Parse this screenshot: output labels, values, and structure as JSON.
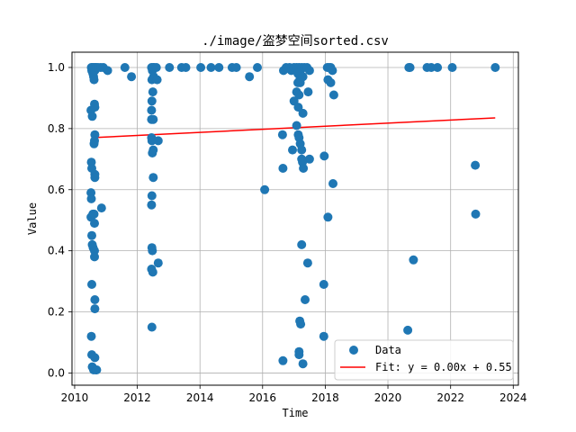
{
  "chart_data": {
    "type": "scatter",
    "title": "./image/盗梦空间sorted.csv",
    "xlabel": "Time",
    "ylabel": "Value",
    "xlim": [
      "2009-12-01",
      "2024-03-01"
    ],
    "ylim": [
      -0.04,
      1.05
    ],
    "x_ticks": [
      "2010",
      "2012",
      "2014",
      "2016",
      "2018",
      "2020",
      "2022",
      "2024"
    ],
    "y_ticks": [
      "0.0",
      "0.2",
      "0.4",
      "0.6",
      "0.8",
      "1.0"
    ],
    "grid": true,
    "legend_position": "lower-right",
    "colors": {
      "points": "#1f77b4",
      "fit_line": "#ff0000",
      "grid": "#b0b0b0"
    },
    "series": [
      {
        "name": "Data",
        "type": "scatter",
        "points": [
          [
            "2010-07-15",
            1.0
          ],
          [
            "2010-07-20",
            0.99
          ],
          [
            "2010-07-25",
            1.0
          ],
          [
            "2010-08-01",
            0.98
          ],
          [
            "2010-08-05",
            1.0
          ],
          [
            "2010-08-10",
            0.97
          ],
          [
            "2010-08-15",
            0.96
          ],
          [
            "2010-08-20",
            1.0
          ],
          [
            "2010-08-25",
            0.99
          ],
          [
            "2010-09-01",
            1.0
          ],
          [
            "2010-09-10",
            1.0
          ],
          [
            "2010-10-01",
            1.0
          ],
          [
            "2010-11-01",
            1.0
          ],
          [
            "2010-12-01",
            1.0
          ],
          [
            "2011-01-20",
            0.99
          ],
          [
            "2011-08-10",
            1.0
          ],
          [
            "2011-10-25",
            0.97
          ],
          [
            "2010-07-10",
            0.86
          ],
          [
            "2010-07-25",
            0.84
          ],
          [
            "2010-08-20",
            0.88
          ],
          [
            "2010-08-25",
            0.87
          ],
          [
            "2010-08-25",
            0.78
          ],
          [
            "2010-08-20",
            0.76
          ],
          [
            "2010-08-15",
            0.75
          ],
          [
            "2010-07-15",
            0.69
          ],
          [
            "2010-07-20",
            0.67
          ],
          [
            "2010-08-25",
            0.65
          ],
          [
            "2010-08-25",
            0.64
          ],
          [
            "2010-07-10",
            0.59
          ],
          [
            "2010-07-15",
            0.57
          ],
          [
            "2010-07-10",
            0.51
          ],
          [
            "2010-08-01",
            0.52
          ],
          [
            "2010-08-15",
            0.52
          ],
          [
            "2010-08-20",
            0.49
          ],
          [
            "2010-11-10",
            0.54
          ],
          [
            "2010-07-20",
            0.45
          ],
          [
            "2010-07-25",
            0.42
          ],
          [
            "2010-08-05",
            0.41
          ],
          [
            "2010-08-20",
            0.4
          ],
          [
            "2010-08-20",
            0.38
          ],
          [
            "2010-07-20",
            0.29
          ],
          [
            "2010-08-25",
            0.24
          ],
          [
            "2010-08-25",
            0.21
          ],
          [
            "2010-07-15",
            0.12
          ],
          [
            "2010-07-20",
            0.06
          ],
          [
            "2010-08-25",
            0.05
          ],
          [
            "2010-07-25",
            0.02
          ],
          [
            "2010-08-10",
            0.01
          ],
          [
            "2010-09-05",
            0.01
          ],
          [
            "2010-09-15",
            0.01
          ],
          [
            "2012-06-15",
            1.0
          ],
          [
            "2012-06-25",
            0.99
          ],
          [
            "2012-07-05",
            1.0
          ],
          [
            "2012-07-15",
            1.0
          ],
          [
            "2012-08-10",
            1.0
          ],
          [
            "2012-06-20",
            0.96
          ],
          [
            "2012-07-10",
            0.97
          ],
          [
            "2012-08-20",
            0.96
          ],
          [
            "2012-06-30",
            0.92
          ],
          [
            "2012-06-20",
            0.89
          ],
          [
            "2012-06-15",
            0.86
          ],
          [
            "2012-06-15",
            0.83
          ],
          [
            "2012-07-05",
            0.83
          ],
          [
            "2012-06-15",
            0.77
          ],
          [
            "2012-06-20",
            0.76
          ],
          [
            "2012-09-01",
            0.76
          ],
          [
            "2012-06-25",
            0.72
          ],
          [
            "2012-07-05",
            0.73
          ],
          [
            "2012-07-05",
            0.64
          ],
          [
            "2012-06-20",
            0.58
          ],
          [
            "2012-06-15",
            0.55
          ],
          [
            "2012-06-20",
            0.41
          ],
          [
            "2012-06-25",
            0.4
          ],
          [
            "2012-06-15",
            0.34
          ],
          [
            "2012-06-30",
            0.33
          ],
          [
            "2012-09-01",
            0.36
          ],
          [
            "2012-06-20",
            0.15
          ],
          [
            "2013-01-10",
            1.0
          ],
          [
            "2013-06-01",
            1.0
          ],
          [
            "2013-07-20",
            1.0
          ],
          [
            "2014-01-10",
            1.0
          ],
          [
            "2014-05-10",
            1.0
          ],
          [
            "2014-08-10",
            1.0
          ],
          [
            "2015-01-10",
            1.0
          ],
          [
            "2015-03-01",
            1.0
          ],
          [
            "2015-08-01",
            0.97
          ],
          [
            "2015-11-01",
            1.0
          ],
          [
            "2016-01-25",
            0.6
          ],
          [
            "2016-09-01",
            0.99
          ],
          [
            "2016-10-01",
            1.0
          ],
          [
            "2016-11-10",
            1.0
          ],
          [
            "2016-12-01",
            0.99
          ],
          [
            "2017-01-01",
            1.0
          ],
          [
            "2017-02-01",
            1.0
          ],
          [
            "2017-03-01",
            1.0
          ],
          [
            "2017-03-15",
            0.99
          ],
          [
            "2017-04-01",
            1.0
          ],
          [
            "2017-05-01",
            1.0
          ],
          [
            "2017-06-01",
            1.0
          ],
          [
            "2017-07-01",
            0.99
          ],
          [
            "2017-02-15",
            0.98
          ],
          [
            "2017-03-10",
            0.96
          ],
          [
            "2017-02-15",
            0.95
          ],
          [
            "2017-03-15",
            0.95
          ],
          [
            "2017-04-15",
            0.97
          ],
          [
            "2017-02-01",
            0.92
          ],
          [
            "2017-03-01",
            0.91
          ],
          [
            "2017-06-15",
            0.92
          ],
          [
            "2017-01-01",
            0.89
          ],
          [
            "2017-02-20",
            0.87
          ],
          [
            "2017-04-15",
            0.85
          ],
          [
            "2016-08-20",
            0.78
          ],
          [
            "2017-02-01",
            0.81
          ],
          [
            "2017-02-20",
            0.78
          ],
          [
            "2017-03-01",
            0.77
          ],
          [
            "2017-03-15",
            0.75
          ],
          [
            "2016-12-15",
            0.73
          ],
          [
            "2017-04-01",
            0.73
          ],
          [
            "2017-07-01",
            0.7
          ],
          [
            "2017-04-01",
            0.7
          ],
          [
            "2017-04-10",
            0.69
          ],
          [
            "2017-04-20",
            0.67
          ],
          [
            "2016-08-25",
            0.67
          ],
          [
            "2017-12-20",
            0.71
          ],
          [
            "2017-04-01",
            0.42
          ],
          [
            "2017-06-10",
            0.36
          ],
          [
            "2017-05-10",
            0.24
          ],
          [
            "2017-03-10",
            0.17
          ],
          [
            "2017-03-20",
            0.16
          ],
          [
            "2017-03-01",
            0.07
          ],
          [
            "2017-03-01",
            0.06
          ],
          [
            "2016-08-25",
            0.04
          ],
          [
            "2017-04-15",
            0.03
          ],
          [
            "2017-12-15",
            0.29
          ],
          [
            "2017-12-15",
            0.12
          ],
          [
            "2018-01-25",
            1.0
          ],
          [
            "2018-02-15",
            1.0
          ],
          [
            "2018-03-05",
            1.0
          ],
          [
            "2018-03-25",
            0.99
          ],
          [
            "2018-02-01",
            0.96
          ],
          [
            "2018-03-05",
            0.95
          ],
          [
            "2018-04-10",
            0.91
          ],
          [
            "2018-04-01",
            0.62
          ],
          [
            "2018-02-01",
            0.51
          ],
          [
            "2020-09-01",
            1.0
          ],
          [
            "2020-09-15",
            1.0
          ],
          [
            "2021-04-01",
            1.0
          ],
          [
            "2021-05-20",
            1.0
          ],
          [
            "2021-08-01",
            1.0
          ],
          [
            "2022-01-20",
            1.0
          ],
          [
            "2023-06-05",
            1.0
          ],
          [
            "2020-10-25",
            0.37
          ],
          [
            "2020-08-20",
            0.14
          ],
          [
            "2022-10-15",
            0.68
          ],
          [
            "2022-10-20",
            0.52
          ]
        ]
      },
      {
        "name": "Fit: y = 0.00x + 0.55",
        "type": "line",
        "points": [
          [
            "2010-07-15",
            0.77
          ],
          [
            "2023-06-05",
            0.835
          ]
        ]
      }
    ]
  }
}
